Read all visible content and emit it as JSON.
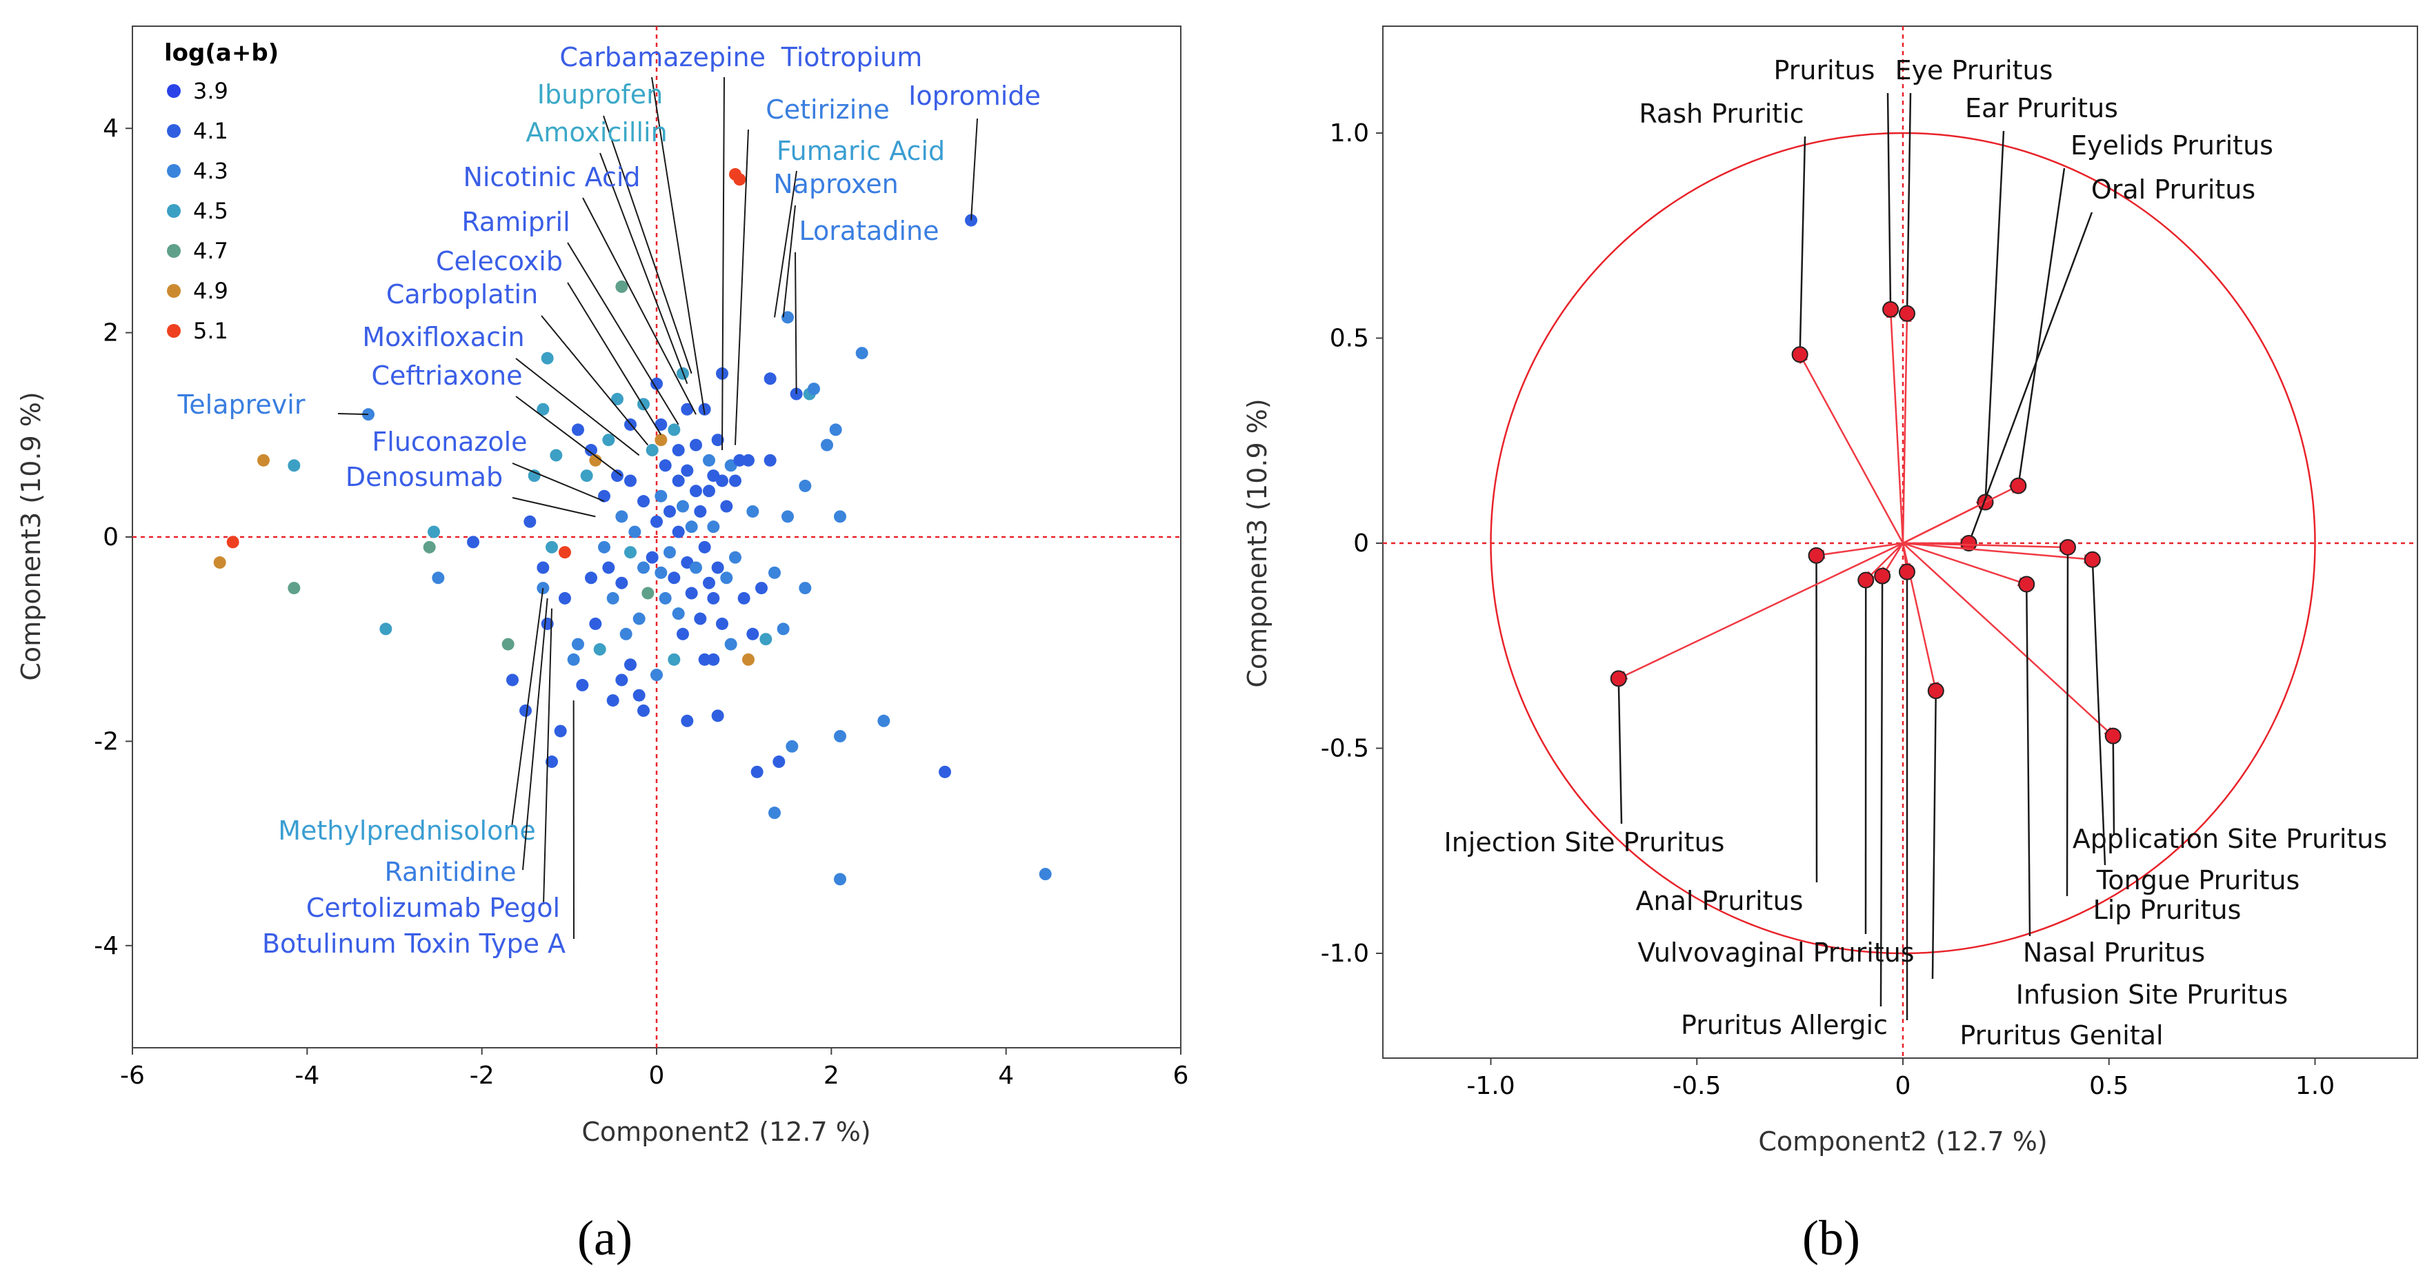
{
  "colors": {
    "ref_line": "#e8232a",
    "circle": "#e8232a",
    "arrow": "#f03a44",
    "loading_point": "#e01e2e",
    "leader": "#1a1a1a"
  },
  "chart_data": [
    {
      "type": "scatter",
      "panel_label": "(a)",
      "xlabel": "Component2  (12.7 %)",
      "ylabel": "Component3  (10.9 %)",
      "xlim": [
        -6,
        6
      ],
      "ylim": [
        -5,
        5
      ],
      "xticks": [
        "-6",
        "-4",
        "-2",
        "0",
        "2",
        "4",
        "6"
      ],
      "yticks": [
        "-4",
        "-2",
        "0",
        "2",
        "4"
      ],
      "grid": false,
      "legend": {
        "title": "log(a+b)",
        "placement": "top-left",
        "items": [
          {
            "label": "3.9",
            "color": "#2a43e8"
          },
          {
            "label": "4.1",
            "color": "#2f5fe0"
          },
          {
            "label": "4.3",
            "color": "#3a84dc"
          },
          {
            "label": "4.5",
            "color": "#3c9fc4"
          },
          {
            "label": "4.7",
            "color": "#5fa08a"
          },
          {
            "label": "4.9",
            "color": "#cc8a30"
          },
          {
            "label": "5.1",
            "color": "#ee4020"
          }
        ]
      },
      "labeled_points": [
        {
          "name": "Carbamazepine",
          "x": 0.55,
          "y": 1.2,
          "color": "#3a5ee6"
        },
        {
          "name": "Tiotropium",
          "x": 0.75,
          "y": 0.85,
          "color": "#3a5ee6"
        },
        {
          "name": "Ibuprofen",
          "x": 0.4,
          "y": 1.6,
          "color": "#3ca8c8"
        },
        {
          "name": "Amoxicillin",
          "x": 0.35,
          "y": 1.5,
          "color": "#3ca8c8"
        },
        {
          "name": "Cetirizine",
          "x": 0.9,
          "y": 0.9,
          "color": "#3a7ee0"
        },
        {
          "name": "Iopromide",
          "x": 3.6,
          "y": 3.1,
          "color": "#3a5ee6"
        },
        {
          "name": "Fumaric Acid",
          "x": 1.35,
          "y": 2.15,
          "color": "#3a9ed2"
        },
        {
          "name": "Naproxen",
          "x": 1.45,
          "y": 2.15,
          "color": "#3a7ee0"
        },
        {
          "name": "Nicotinic Acid",
          "x": 0.45,
          "y": 1.2,
          "color": "#3a5ee6"
        },
        {
          "name": "Loratadine",
          "x": 1.6,
          "y": 1.4,
          "color": "#3a7ee0"
        },
        {
          "name": "Ramipril",
          "x": 0.25,
          "y": 1.1,
          "color": "#3a5ee6"
        },
        {
          "name": "Celecoxib",
          "x": 0.05,
          "y": 1.0,
          "color": "#3a5ee6"
        },
        {
          "name": "Carboplatin",
          "x": -0.1,
          "y": 0.9,
          "color": "#3a5ee6"
        },
        {
          "name": "Moxifloxacin",
          "x": -0.2,
          "y": 0.8,
          "color": "#3a5ee6"
        },
        {
          "name": "Ceftriaxone",
          "x": -0.4,
          "y": 0.6,
          "color": "#3a5ee6"
        },
        {
          "name": "Telaprevir",
          "x": -3.3,
          "y": 1.2,
          "color": "#3a7ee0"
        },
        {
          "name": "Fluconazole",
          "x": -0.6,
          "y": 0.35,
          "color": "#3a5ee6"
        },
        {
          "name": "Denosumab",
          "x": -0.7,
          "y": 0.2,
          "color": "#3a5ee6"
        },
        {
          "name": "Methylprednisolone",
          "x": -1.3,
          "y": -0.5,
          "color": "#3a9ed2"
        },
        {
          "name": "Ranitidine",
          "x": -1.25,
          "y": -0.6,
          "color": "#3a7ee0"
        },
        {
          "name": "Certolizumab Pegol",
          "x": -1.2,
          "y": -0.7,
          "color": "#3a5ee6"
        },
        {
          "name": "Botulinum Toxin Type A",
          "x": -0.95,
          "y": -1.6,
          "color": "#3a5ee6"
        }
      ],
      "points": [
        {
          "x": -5.0,
          "y": -0.25,
          "g": 5
        },
        {
          "x": -4.85,
          "y": -0.05,
          "g": 6
        },
        {
          "x": -4.5,
          "y": 0.75,
          "g": 5
        },
        {
          "x": -4.15,
          "y": 0.7,
          "g": 3
        },
        {
          "x": -4.15,
          "y": -0.5,
          "g": 4
        },
        {
          "x": -3.3,
          "y": 1.2,
          "g": 2
        },
        {
          "x": -3.1,
          "y": -0.9,
          "g": 3
        },
        {
          "x": -2.55,
          "y": 0.05,
          "g": 3
        },
        {
          "x": -2.6,
          "y": -0.1,
          "g": 4
        },
        {
          "x": -2.5,
          "y": -0.4,
          "g": 2
        },
        {
          "x": -2.1,
          "y": -0.05,
          "g": 1
        },
        {
          "x": -1.7,
          "y": -1.05,
          "g": 4
        },
        {
          "x": -1.65,
          "y": -1.4,
          "g": 1
        },
        {
          "x": -1.5,
          "y": -1.7,
          "g": 1
        },
        {
          "x": -1.45,
          "y": 0.15,
          "g": 1
        },
        {
          "x": -1.4,
          "y": 0.6,
          "g": 3
        },
        {
          "x": -1.3,
          "y": 1.25,
          "g": 3
        },
        {
          "x": -1.25,
          "y": 1.75,
          "g": 3
        },
        {
          "x": -1.3,
          "y": -0.3,
          "g": 1
        },
        {
          "x": -1.3,
          "y": -0.5,
          "g": 2
        },
        {
          "x": -1.25,
          "y": -0.85,
          "g": 1
        },
        {
          "x": -1.2,
          "y": -0.1,
          "g": 3
        },
        {
          "x": -1.15,
          "y": 0.8,
          "g": 3
        },
        {
          "x": -1.2,
          "y": -2.2,
          "g": 1
        },
        {
          "x": -1.1,
          "y": -1.9,
          "g": 1
        },
        {
          "x": -1.05,
          "y": -0.15,
          "g": 6
        },
        {
          "x": -1.05,
          "y": -0.6,
          "g": 1
        },
        {
          "x": -0.95,
          "y": -1.2,
          "g": 2
        },
        {
          "x": -0.9,
          "y": 1.05,
          "g": 1
        },
        {
          "x": -0.9,
          "y": -1.05,
          "g": 2
        },
        {
          "x": -0.85,
          "y": -1.45,
          "g": 1
        },
        {
          "x": -0.8,
          "y": 0.6,
          "g": 3
        },
        {
          "x": -0.75,
          "y": 0.85,
          "g": 1
        },
        {
          "x": -0.75,
          "y": -0.4,
          "g": 1
        },
        {
          "x": -0.7,
          "y": 0.75,
          "g": 5
        },
        {
          "x": -0.7,
          "y": -0.85,
          "g": 1
        },
        {
          "x": -0.65,
          "y": -1.1,
          "g": 3
        },
        {
          "x": -0.6,
          "y": 0.4,
          "g": 1
        },
        {
          "x": -0.6,
          "y": -0.1,
          "g": 2
        },
        {
          "x": -0.55,
          "y": 0.95,
          "g": 3
        },
        {
          "x": -0.55,
          "y": -0.3,
          "g": 1
        },
        {
          "x": -0.5,
          "y": -0.6,
          "g": 2
        },
        {
          "x": -0.5,
          "y": -1.6,
          "g": 1
        },
        {
          "x": -0.45,
          "y": 0.6,
          "g": 1
        },
        {
          "x": -0.45,
          "y": 1.35,
          "g": 3
        },
        {
          "x": -0.4,
          "y": 2.45,
          "g": 4
        },
        {
          "x": -0.4,
          "y": 0.2,
          "g": 2
        },
        {
          "x": -0.4,
          "y": -0.45,
          "g": 1
        },
        {
          "x": -0.4,
          "y": -1.4,
          "g": 1
        },
        {
          "x": -0.35,
          "y": -0.95,
          "g": 2
        },
        {
          "x": -0.3,
          "y": 1.1,
          "g": 1
        },
        {
          "x": -0.3,
          "y": 0.55,
          "g": 1
        },
        {
          "x": -0.3,
          "y": -0.15,
          "g": 3
        },
        {
          "x": -0.3,
          "y": -1.25,
          "g": 1
        },
        {
          "x": -0.25,
          "y": 0.05,
          "g": 2
        },
        {
          "x": -0.2,
          "y": -0.8,
          "g": 2
        },
        {
          "x": -0.2,
          "y": -1.55,
          "g": 1
        },
        {
          "x": -0.15,
          "y": 1.3,
          "g": 3
        },
        {
          "x": -0.15,
          "y": 0.35,
          "g": 1
        },
        {
          "x": -0.15,
          "y": -0.3,
          "g": 2
        },
        {
          "x": -0.15,
          "y": -1.7,
          "g": 1
        },
        {
          "x": -0.1,
          "y": -0.55,
          "g": 4
        },
        {
          "x": -0.05,
          "y": 0.85,
          "g": 3
        },
        {
          "x": -0.05,
          "y": -0.2,
          "g": 1
        },
        {
          "x": 0.0,
          "y": 1.5,
          "g": 1
        },
        {
          "x": 0.0,
          "y": 0.15,
          "g": 1
        },
        {
          "x": 0.0,
          "y": -1.35,
          "g": 2
        },
        {
          "x": 0.05,
          "y": 1.1,
          "g": 1
        },
        {
          "x": 0.05,
          "y": 0.95,
          "g": 5
        },
        {
          "x": 0.05,
          "y": 0.4,
          "g": 2
        },
        {
          "x": 0.05,
          "y": -0.35,
          "g": 2
        },
        {
          "x": 0.1,
          "y": 0.7,
          "g": 1
        },
        {
          "x": 0.1,
          "y": -0.6,
          "g": 2
        },
        {
          "x": 0.15,
          "y": 0.25,
          "g": 1
        },
        {
          "x": 0.15,
          "y": -0.15,
          "g": 2
        },
        {
          "x": 0.2,
          "y": 1.05,
          "g": 3
        },
        {
          "x": 0.2,
          "y": -0.4,
          "g": 1
        },
        {
          "x": 0.2,
          "y": -1.2,
          "g": 3
        },
        {
          "x": 0.25,
          "y": 0.85,
          "g": 1
        },
        {
          "x": 0.25,
          "y": 0.55,
          "g": 1
        },
        {
          "x": 0.25,
          "y": 0.05,
          "g": 1
        },
        {
          "x": 0.25,
          "y": -0.75,
          "g": 2
        },
        {
          "x": 0.3,
          "y": 1.6,
          "g": 3
        },
        {
          "x": 0.3,
          "y": 0.3,
          "g": 2
        },
        {
          "x": 0.3,
          "y": -0.95,
          "g": 1
        },
        {
          "x": 0.35,
          "y": 1.25,
          "g": 1
        },
        {
          "x": 0.35,
          "y": 0.65,
          "g": 1
        },
        {
          "x": 0.35,
          "y": -0.25,
          "g": 1
        },
        {
          "x": 0.35,
          "y": -1.8,
          "g": 1
        },
        {
          "x": 0.4,
          "y": 0.1,
          "g": 2
        },
        {
          "x": 0.4,
          "y": -0.55,
          "g": 1
        },
        {
          "x": 0.45,
          "y": 0.9,
          "g": 1
        },
        {
          "x": 0.45,
          "y": 0.45,
          "g": 1
        },
        {
          "x": 0.45,
          "y": -0.3,
          "g": 2
        },
        {
          "x": 0.5,
          "y": 0.25,
          "g": 1
        },
        {
          "x": 0.5,
          "y": -0.8,
          "g": 1
        },
        {
          "x": 0.55,
          "y": 1.25,
          "g": 1
        },
        {
          "x": 0.55,
          "y": -0.1,
          "g": 1
        },
        {
          "x": 0.55,
          "y": -1.2,
          "g": 1
        },
        {
          "x": 0.6,
          "y": 0.75,
          "g": 2
        },
        {
          "x": 0.6,
          "y": 0.45,
          "g": 1
        },
        {
          "x": 0.6,
          "y": -0.45,
          "g": 1
        },
        {
          "x": 0.65,
          "y": 0.6,
          "g": 1
        },
        {
          "x": 0.65,
          "y": 0.1,
          "g": 2
        },
        {
          "x": 0.65,
          "y": -0.6,
          "g": 1
        },
        {
          "x": 0.65,
          "y": -1.2,
          "g": 1
        },
        {
          "x": 0.7,
          "y": 0.95,
          "g": 1
        },
        {
          "x": 0.7,
          "y": -0.3,
          "g": 1
        },
        {
          "x": 0.7,
          "y": -1.75,
          "g": 1
        },
        {
          "x": 0.75,
          "y": 1.6,
          "g": 1
        },
        {
          "x": 0.75,
          "y": 0.55,
          "g": 1
        },
        {
          "x": 0.75,
          "y": -0.85,
          "g": 1
        },
        {
          "x": 0.8,
          "y": 0.3,
          "g": 1
        },
        {
          "x": 0.8,
          "y": -0.4,
          "g": 2
        },
        {
          "x": 0.85,
          "y": 0.7,
          "g": 2
        },
        {
          "x": 0.85,
          "y": -1.05,
          "g": 2
        },
        {
          "x": 0.9,
          "y": 0.55,
          "g": 1
        },
        {
          "x": 0.9,
          "y": -0.2,
          "g": 2
        },
        {
          "x": 0.9,
          "y": 3.55,
          "g": 6
        },
        {
          "x": 0.95,
          "y": 3.5,
          "g": 6
        },
        {
          "x": 0.95,
          "y": 0.75,
          "g": 1
        },
        {
          "x": 1.0,
          "y": -0.6,
          "g": 1
        },
        {
          "x": 1.05,
          "y": 0.75,
          "g": 1
        },
        {
          "x": 1.05,
          "y": -1.2,
          "g": 5
        },
        {
          "x": 1.1,
          "y": 0.25,
          "g": 2
        },
        {
          "x": 1.1,
          "y": -0.95,
          "g": 1
        },
        {
          "x": 1.15,
          "y": -2.3,
          "g": 1
        },
        {
          "x": 1.2,
          "y": -0.5,
          "g": 1
        },
        {
          "x": 1.25,
          "y": -1.0,
          "g": 3
        },
        {
          "x": 1.3,
          "y": 1.55,
          "g": 1
        },
        {
          "x": 1.3,
          "y": 0.75,
          "g": 1
        },
        {
          "x": 1.35,
          "y": -0.35,
          "g": 2
        },
        {
          "x": 1.35,
          "y": -2.7,
          "g": 2
        },
        {
          "x": 1.4,
          "y": -2.2,
          "g": 1
        },
        {
          "x": 1.45,
          "y": -0.9,
          "g": 2
        },
        {
          "x": 1.5,
          "y": 2.15,
          "g": 2
        },
        {
          "x": 1.5,
          "y": 0.2,
          "g": 2
        },
        {
          "x": 1.55,
          "y": -2.05,
          "g": 2
        },
        {
          "x": 1.6,
          "y": 1.4,
          "g": 1
        },
        {
          "x": 1.7,
          "y": 0.5,
          "g": 2
        },
        {
          "x": 1.7,
          "y": -0.5,
          "g": 2
        },
        {
          "x": 1.75,
          "y": 1.4,
          "g": 3
        },
        {
          "x": 1.8,
          "y": 1.45,
          "g": 2
        },
        {
          "x": 1.95,
          "y": 0.9,
          "g": 2
        },
        {
          "x": 2.05,
          "y": 1.05,
          "g": 2
        },
        {
          "x": 2.1,
          "y": 0.2,
          "g": 2
        },
        {
          "x": 2.1,
          "y": -1.95,
          "g": 2
        },
        {
          "x": 2.1,
          "y": -3.35,
          "g": 2
        },
        {
          "x": 2.35,
          "y": 1.8,
          "g": 2
        },
        {
          "x": 2.6,
          "y": -1.8,
          "g": 2
        },
        {
          "x": 3.3,
          "y": -2.3,
          "g": 1
        },
        {
          "x": 3.6,
          "y": 3.1,
          "g": 1
        },
        {
          "x": 4.45,
          "y": -3.3,
          "g": 2
        }
      ]
    },
    {
      "type": "scatter",
      "panel_label": "(b)",
      "xlabel": "Component2  (12.7 %)",
      "ylabel": "Component3  (10.9 %)",
      "xlim": [
        -1.25,
        1.25
      ],
      "ylim": [
        -1.25,
        1.25
      ],
      "xticks": [
        "-1.0",
        "-0.5",
        "0",
        "0.5",
        "1.0"
      ],
      "yticks": [
        "-1.0",
        "-0.5",
        "0",
        "0.5",
        "1.0"
      ],
      "grid": false,
      "unit_circle_radius": 1.0,
      "loadings": [
        {
          "name": "Pruritus",
          "x": -0.03,
          "y": 0.57
        },
        {
          "name": "Eye Pruritus",
          "x": 0.01,
          "y": 0.56
        },
        {
          "name": "Rash Pruritic",
          "x": -0.25,
          "y": 0.46
        },
        {
          "name": "Ear Pruritus",
          "x": 0.2,
          "y": 0.1
        },
        {
          "name": "Eyelids Pruritus",
          "x": 0.28,
          "y": 0.14
        },
        {
          "name": "Oral Pruritus",
          "x": 0.16,
          "y": 0.0
        },
        {
          "name": "Application Site Pruritus",
          "x": 0.51,
          "y": -0.47
        },
        {
          "name": "Tongue Pruritus",
          "x": 0.46,
          "y": -0.04
        },
        {
          "name": "Lip Pruritus",
          "x": 0.4,
          "y": -0.01
        },
        {
          "name": "Nasal Pruritus",
          "x": 0.3,
          "y": -0.1
        },
        {
          "name": "Infusion Site Pruritus",
          "x": 0.08,
          "y": -0.36
        },
        {
          "name": "Pruritus Genital",
          "x": 0.01,
          "y": -0.07
        },
        {
          "name": "Pruritus Allergic",
          "x": -0.05,
          "y": -0.08
        },
        {
          "name": "Vulvovaginal Pruritus",
          "x": -0.09,
          "y": -0.09
        },
        {
          "name": "Anal Pruritus",
          "x": -0.21,
          "y": -0.03
        },
        {
          "name": "Injection Site Pruritus",
          "x": -0.69,
          "y": -0.33
        }
      ]
    }
  ]
}
